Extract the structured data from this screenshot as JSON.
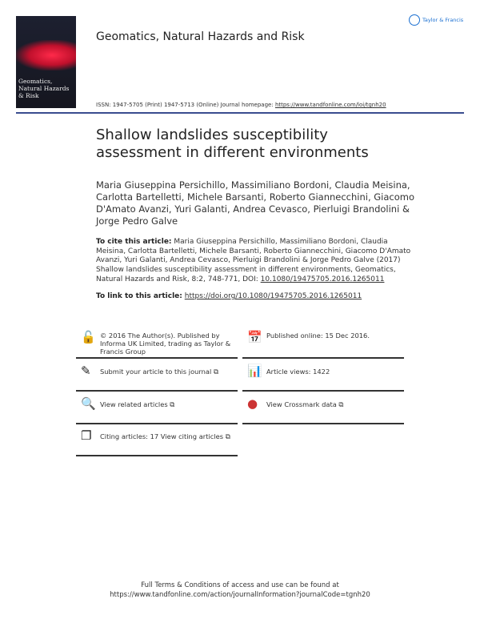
{
  "journal": {
    "name": "Geomatics, Natural Hazards and Risk",
    "cover_title": "Geomatics, Natural Hazards & Risk",
    "publisher_logo": "Taylor & Francis",
    "issn_text": "ISSN: 1947-5705 (Print) 1947-5713 (Online) Journal homepage: ",
    "homepage": "https://www.tandfonline.com/loi/tgnh20"
  },
  "article": {
    "title": "Shallow landslides susceptibility assessment in different environments",
    "authors": "Maria Giuseppina Persichillo, Massimiliano Bordoni, Claudia Meisina, Carlotta Bartelletti, Michele Barsanti, Roberto Giannecchini, Giacomo D'Amato Avanzi, Yuri Galanti, Andrea Cevasco, Pierluigi Brandolini & Jorge Pedro Galve"
  },
  "cite": {
    "label": "To cite this article:",
    "text": " Maria Giuseppina Persichillo, Massimiliano Bordoni, Claudia Meisina, Carlotta Bartelletti, Michele Barsanti, Roberto Giannecchini, Giacomo D'Amato Avanzi, Yuri Galanti, Andrea Cevasco, Pierluigi Brandolini & Jorge Pedro Galve (2017) Shallow landslides susceptibility assessment in different environments, Geomatics, Natural Hazards and Risk, 8:2, 748-771, DOI: ",
    "doi": "10.1080/19475705.2016.1265011"
  },
  "link": {
    "label": "To link to this article:",
    "url": "https://doi.org/10.1080/19475705.2016.1265011"
  },
  "boxes": [
    {
      "icon": "open-access-icon",
      "glyph": "🔓",
      "text": "© 2016 The Author(s). Published by Informa UK Limited, trading as Taylor & Francis Group"
    },
    {
      "icon": "calendar-icon",
      "glyph": "📅",
      "text": "Published online: 15 Dec 2016."
    },
    {
      "icon": "edit-icon",
      "glyph": "✎",
      "text": "Submit your article to this journal ⧉"
    },
    {
      "icon": "bar-chart-icon",
      "glyph": "📊",
      "text": "Article views: 1422"
    },
    {
      "icon": "document-search-icon",
      "glyph": "🔍",
      "text": "View related articles ⧉"
    },
    {
      "icon": "crossmark-icon",
      "glyph": "●",
      "text": "View Crossmark data ⧉"
    },
    {
      "icon": "citing-articles-icon",
      "glyph": "❐",
      "text": "Citing articles: 17 View citing articles ⧉"
    }
  ],
  "footer": {
    "line1": "Full Terms & Conditions of access and use can be found at",
    "line2": "https://www.tandfonline.com/action/journalInformation?journalCode=tgnh20"
  }
}
